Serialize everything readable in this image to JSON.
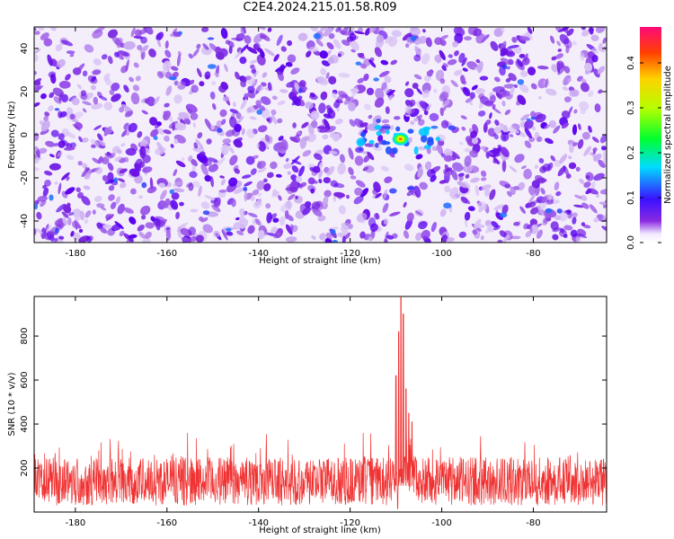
{
  "title": "C2E4.2024.215.01.58.R09",
  "chart_data": [
    {
      "type": "heatmap",
      "name": "spectrogram",
      "xlabel": "Height of straight line (km)",
      "ylabel": "Frequency (Hz)",
      "xlim": [
        -189,
        -64
      ],
      "ylim": [
        -50,
        50
      ],
      "x_ticks": [
        -180,
        -160,
        -140,
        -120,
        -100,
        -80
      ],
      "y_ticks": [
        -40,
        -20,
        0,
        20,
        40
      ],
      "colorbar": {
        "label": "Normalized spectral amplitude",
        "range": [
          0,
          0.48
        ],
        "ticks": [
          0.0,
          0.1,
          0.2,
          0.3,
          0.4
        ]
      },
      "features": [
        {
          "type": "peak",
          "x": -109,
          "y": -2,
          "value": 0.3
        },
        {
          "type": "gap_column",
          "x": -109
        }
      ]
    },
    {
      "type": "line",
      "name": "snr",
      "xlabel": "Height of straight line (km)",
      "ylabel": "SNR (10 * v/v)",
      "xlim": [
        -189,
        -64
      ],
      "ylim": [
        0,
        980
      ],
      "x_ticks": [
        -180,
        -160,
        -140,
        -120,
        -100,
        -80
      ],
      "y_ticks": [
        200,
        400,
        600,
        800
      ],
      "color": "#f03232",
      "baseline_mean": 140,
      "baseline_max": 330,
      "peaks": [
        {
          "x": -110,
          "y": 620
        },
        {
          "x": -109.4,
          "y": 820
        },
        {
          "x": -108.9,
          "y": 980
        },
        {
          "x": -108.4,
          "y": 900
        },
        {
          "x": -107.8,
          "y": 560
        },
        {
          "x": -107.2,
          "y": 450
        },
        {
          "x": -106.5,
          "y": 410
        }
      ]
    }
  ]
}
